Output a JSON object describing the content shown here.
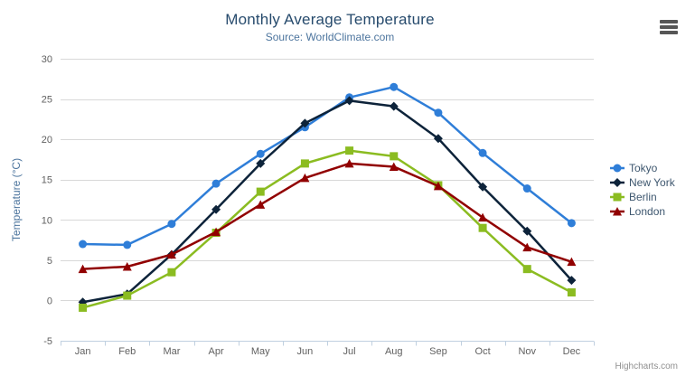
{
  "credits": "Highcharts.com",
  "icons": {
    "export_menu": "hamburger-menu-icon"
  },
  "palette": {
    "title_color": "#274b6d",
    "subtitle_color": "#4d759e",
    "axis_title_color": "#4d759e",
    "tick_label_color": "#606060",
    "legend_text_color": "#3e576f",
    "gridline_color": "#d8d8d8",
    "axis_line_color": "#c0d0e0",
    "credits_color": "#909090",
    "menu_icon_color": "#565656"
  },
  "chart_data": {
    "type": "line",
    "title": "Monthly Average Temperature",
    "subtitle": "Source: WorldClimate.com",
    "categories": [
      "Jan",
      "Feb",
      "Mar",
      "Apr",
      "May",
      "Jun",
      "Jul",
      "Aug",
      "Sep",
      "Oct",
      "Nov",
      "Dec"
    ],
    "xlabel": "",
    "ylabel": "Temperature (°C)",
    "ylim": [
      -5,
      30
    ],
    "ytick_step": 5,
    "grid": true,
    "legend_position": "right",
    "series": [
      {
        "name": "Tokyo",
        "color": "#2f7ed8",
        "marker": "circle",
        "values": [
          7.0,
          6.9,
          9.5,
          14.5,
          18.2,
          21.5,
          25.2,
          26.5,
          23.3,
          18.3,
          13.9,
          9.6
        ]
      },
      {
        "name": "New York",
        "color": "#0d233a",
        "marker": "diamond",
        "values": [
          -0.2,
          0.8,
          5.7,
          11.3,
          17.0,
          22.0,
          24.8,
          24.1,
          20.1,
          14.1,
          8.6,
          2.5
        ]
      },
      {
        "name": "Berlin",
        "color": "#8bbc21",
        "marker": "square",
        "values": [
          -0.9,
          0.6,
          3.5,
          8.4,
          13.5,
          17.0,
          18.6,
          17.9,
          14.3,
          9.0,
          3.9,
          1.0
        ]
      },
      {
        "name": "London",
        "color": "#910000",
        "marker": "triangle",
        "values": [
          3.9,
          4.2,
          5.7,
          8.5,
          11.9,
          15.2,
          17.0,
          16.6,
          14.2,
          10.3,
          6.6,
          4.8
        ]
      }
    ]
  }
}
